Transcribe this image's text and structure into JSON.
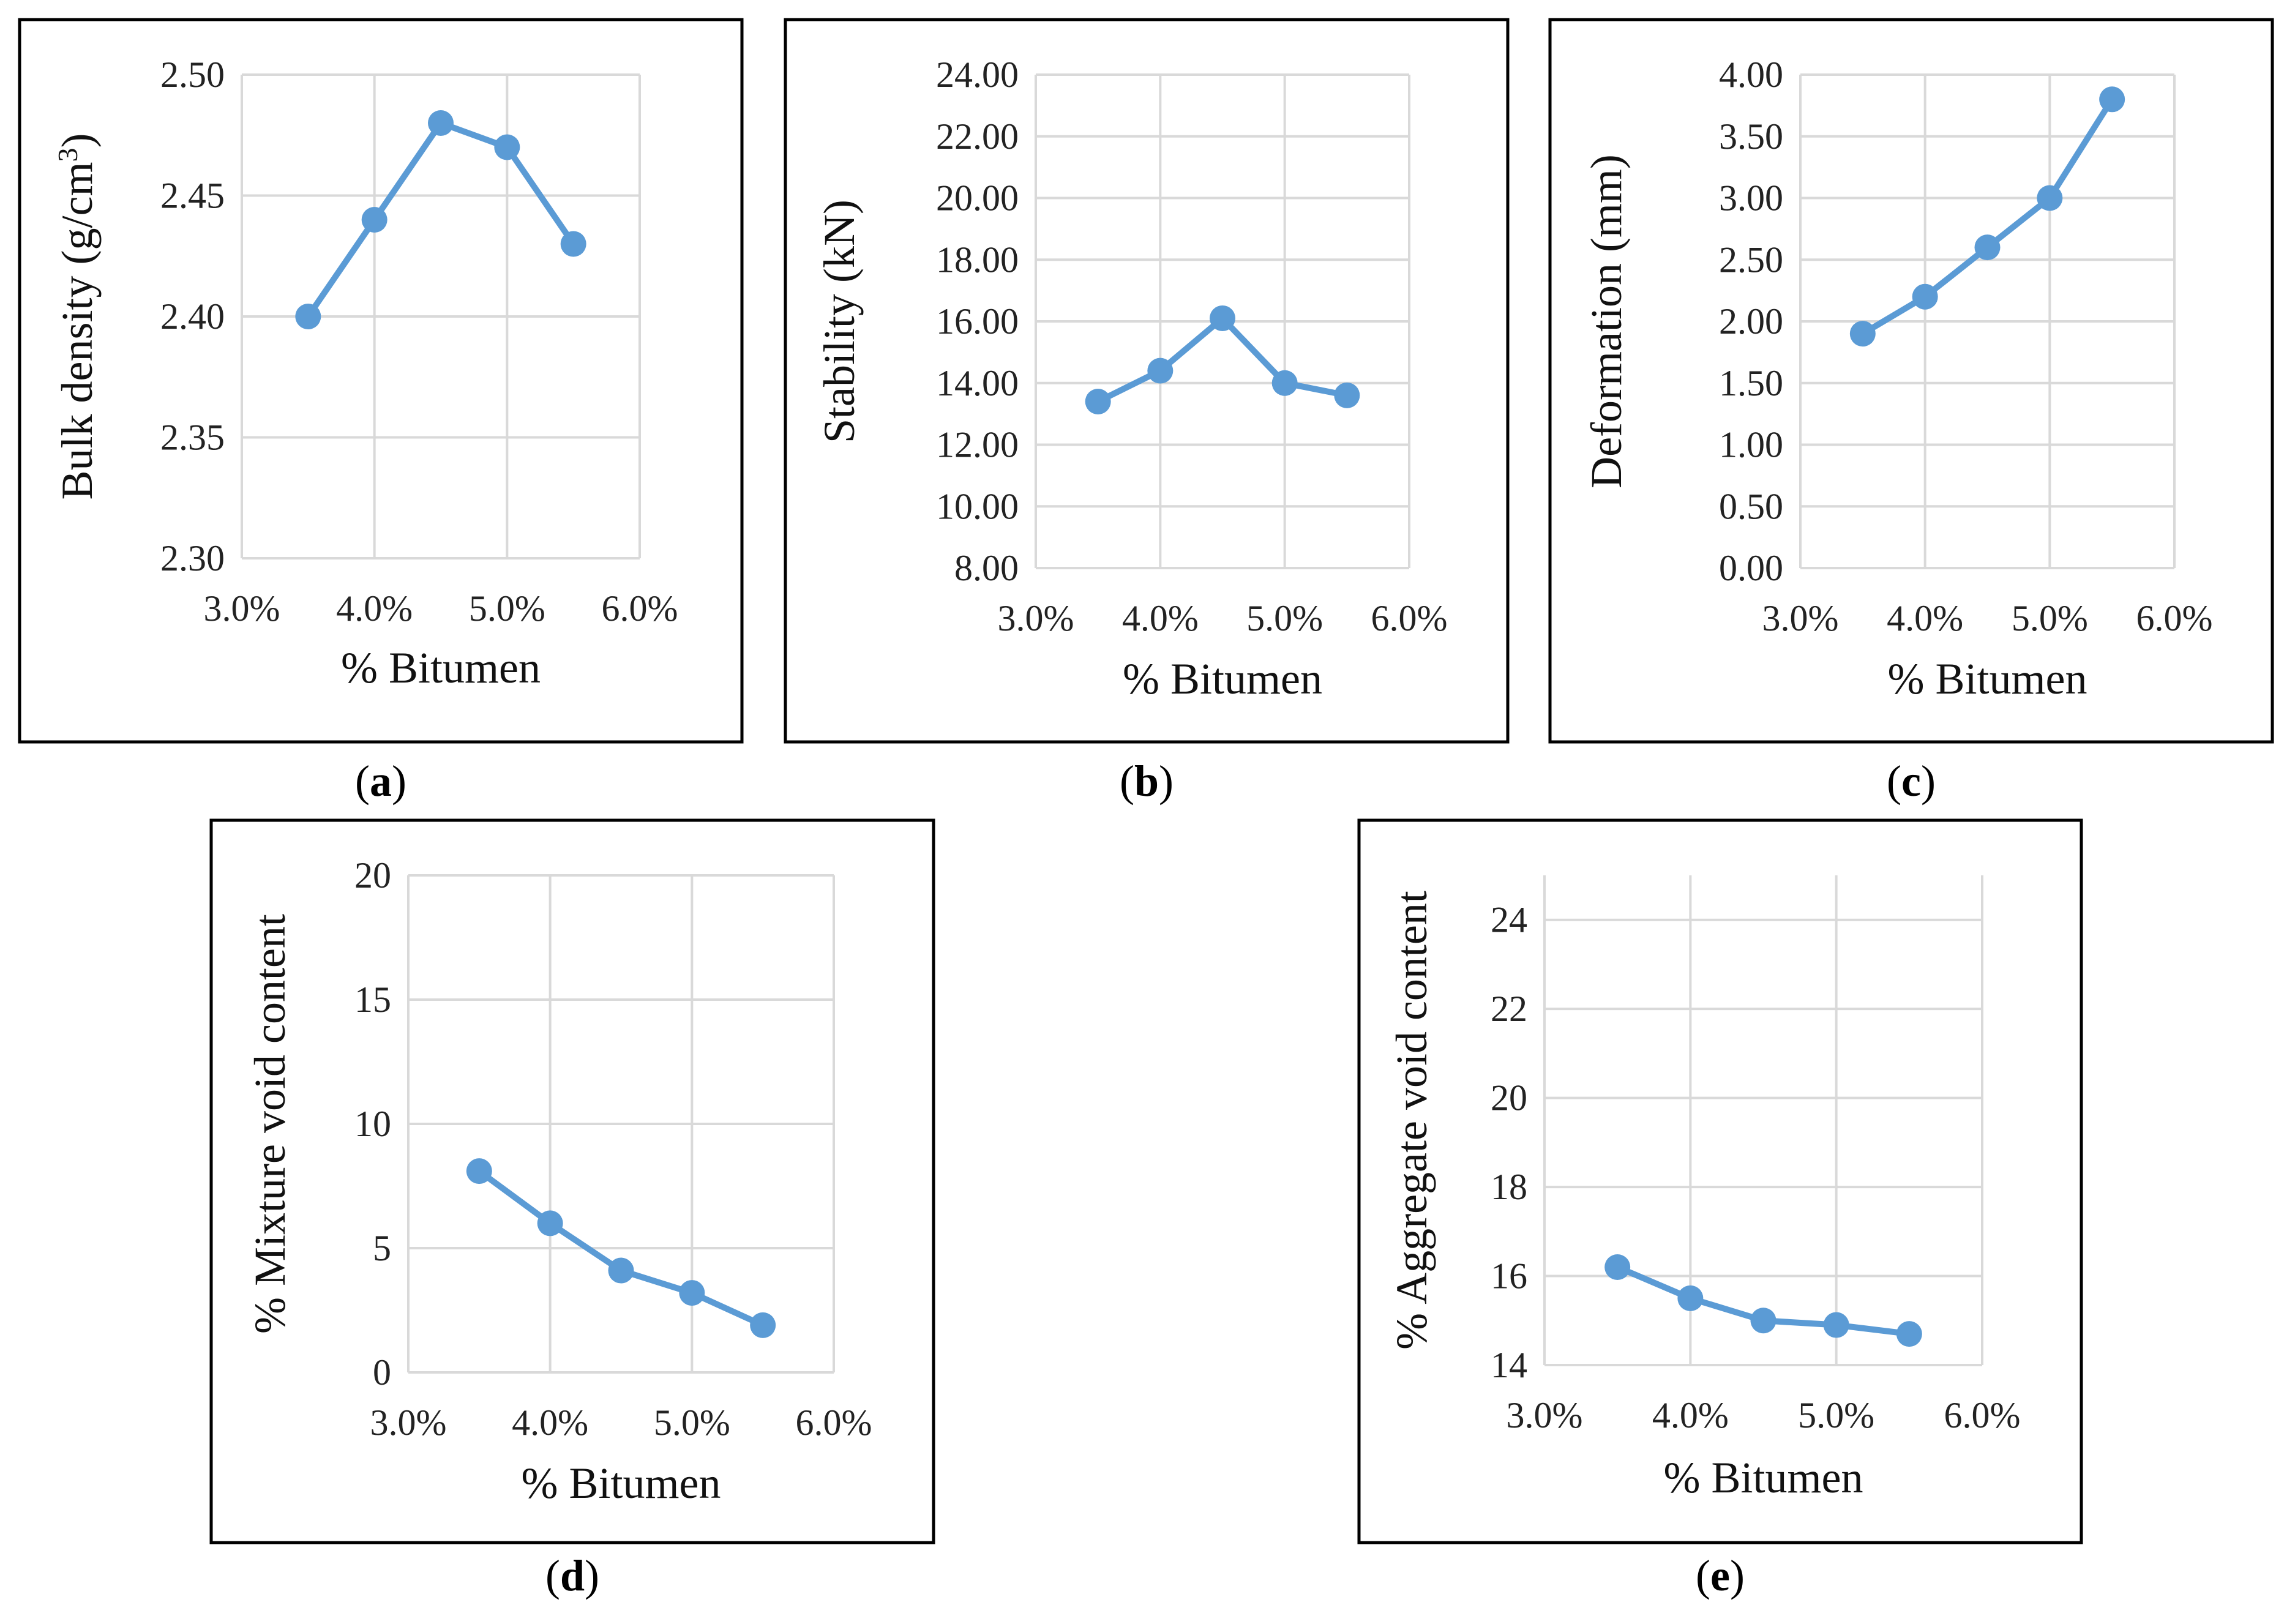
{
  "figure": {
    "series_color": "#5b9bd5",
    "grid_color": "#d9d9d9",
    "frame_color": "#000000"
  },
  "chart_data": [
    {
      "id": "a",
      "panel_label": "a",
      "type": "line",
      "x": [
        0.035,
        0.04,
        0.045,
        0.05,
        0.055
      ],
      "y": [
        2.4,
        2.44,
        2.48,
        2.47,
        2.43
      ],
      "xlabel": "% Bitumen",
      "ylabel_text": "Bulk density (g/cm",
      "ylabel_sup": "3",
      "ylabel_close": ")",
      "xlim": [
        0.03,
        0.06
      ],
      "ylim": [
        2.3,
        2.5
      ],
      "xticks": [
        0.03,
        0.04,
        0.05,
        0.06
      ],
      "xtick_labels": [
        "3.0%",
        "4.0%",
        "5.0%",
        "6.0%"
      ],
      "yticks": [
        2.3,
        2.35,
        2.4,
        2.45,
        2.5
      ],
      "ytick_labels": [
        "2.30",
        "2.35",
        "2.40",
        "2.45",
        "2.50"
      ],
      "grid": true
    },
    {
      "id": "b",
      "panel_label": "b",
      "type": "line",
      "x": [
        0.035,
        0.04,
        0.045,
        0.05,
        0.055
      ],
      "y": [
        13.4,
        14.4,
        16.1,
        14.0,
        13.6
      ],
      "xlabel": "% Bitumen",
      "ylabel_text": "Stability (kN)",
      "xlim": [
        0.03,
        0.06
      ],
      "ylim": [
        8.0,
        24.0
      ],
      "xticks": [
        0.03,
        0.04,
        0.05,
        0.06
      ],
      "xtick_labels": [
        "3.0%",
        "4.0%",
        "5.0%",
        "6.0%"
      ],
      "yticks": [
        8,
        10,
        12,
        14,
        16,
        18,
        20,
        22,
        24
      ],
      "ytick_labels": [
        "8.00",
        "10.00",
        "12.00",
        "14.00",
        "16.00",
        "18.00",
        "20.00",
        "22.00",
        "24.00"
      ],
      "grid": true
    },
    {
      "id": "c",
      "panel_label": "c",
      "type": "line",
      "x": [
        0.035,
        0.04,
        0.045,
        0.05,
        0.055
      ],
      "y": [
        1.9,
        2.2,
        2.6,
        3.0,
        3.8
      ],
      "xlabel": "% Bitumen",
      "ylabel_text": "Deformation (mm)",
      "xlim": [
        0.03,
        0.06
      ],
      "ylim": [
        0.0,
        4.0
      ],
      "xticks": [
        0.03,
        0.04,
        0.05,
        0.06
      ],
      "xtick_labels": [
        "3.0%",
        "4.0%",
        "5.0%",
        "6.0%"
      ],
      "yticks": [
        0,
        0.5,
        1.0,
        1.5,
        2.0,
        2.5,
        3.0,
        3.5,
        4.0
      ],
      "ytick_labels": [
        "0.00",
        "0.50",
        "1.00",
        "1.50",
        "2.00",
        "2.50",
        "3.00",
        "3.50",
        "4.00"
      ],
      "grid": true
    },
    {
      "id": "d",
      "panel_label": "d",
      "type": "line",
      "x": [
        0.035,
        0.04,
        0.045,
        0.05,
        0.055
      ],
      "y": [
        8.1,
        6.0,
        4.1,
        3.2,
        1.9
      ],
      "xlabel": "% Bitumen",
      "ylabel_text": "% Mixture void content",
      "xlim": [
        0.03,
        0.06
      ],
      "ylim": [
        0,
        20
      ],
      "xticks": [
        0.03,
        0.04,
        0.05,
        0.06
      ],
      "xtick_labels": [
        "3.0%",
        "4.0%",
        "5.0%",
        "6.0%"
      ],
      "yticks": [
        0,
        5,
        10,
        15,
        20
      ],
      "ytick_labels": [
        "0",
        "5",
        "10",
        "15",
        "20"
      ],
      "grid": true
    },
    {
      "id": "e",
      "panel_label": "e",
      "type": "line",
      "x": [
        0.035,
        0.04,
        0.045,
        0.05,
        0.055
      ],
      "y": [
        16.2,
        15.5,
        15.0,
        14.9,
        14.7
      ],
      "xlabel": "% Bitumen",
      "ylabel_text": "% Aggregate void content",
      "xlim": [
        0.03,
        0.06
      ],
      "ylim": [
        14,
        25
      ],
      "xticks": [
        0.03,
        0.04,
        0.05,
        0.06
      ],
      "xtick_labels": [
        "3.0%",
        "4.0%",
        "5.0%",
        "6.0%"
      ],
      "yticks": [
        14,
        16,
        18,
        20,
        22,
        24
      ],
      "ytick_labels": [
        "14",
        "16",
        "18",
        "20",
        "22",
        "24"
      ],
      "grid": true
    }
  ]
}
